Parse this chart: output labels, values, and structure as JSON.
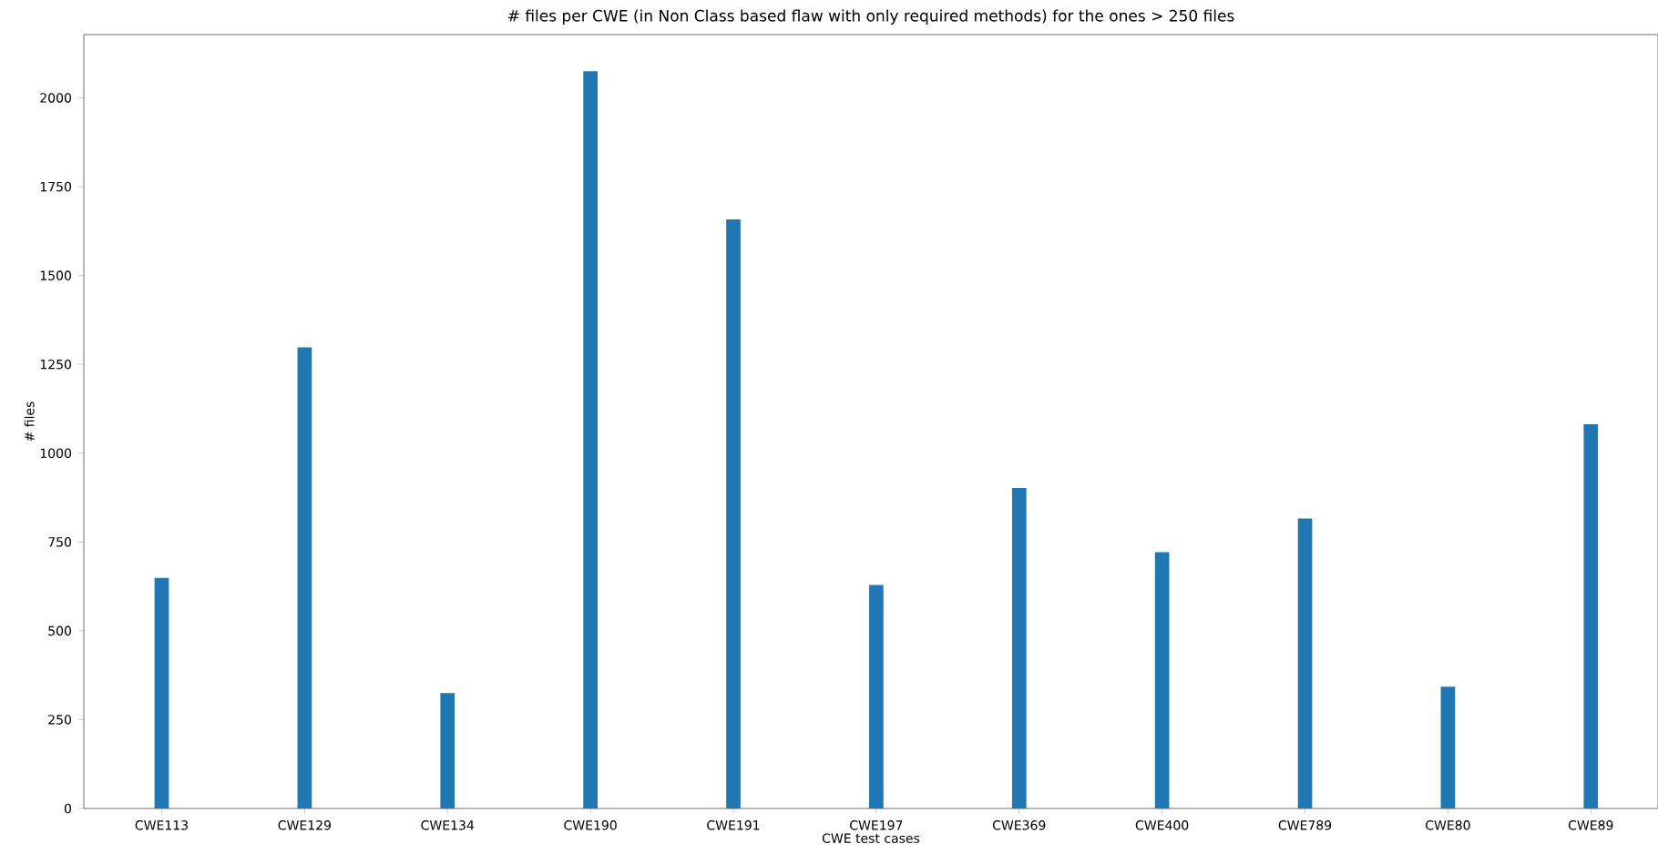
{
  "chart_data": {
    "type": "bar",
    "title": "# files per CWE (in Non Class based flaw with only required methods) for the ones > 250 files",
    "xlabel": "CWE test cases",
    "ylabel": "# files",
    "categories": [
      "CWE113",
      "CWE129",
      "CWE134",
      "CWE190",
      "CWE191",
      "CWE197",
      "CWE369",
      "CWE400",
      "CWE789",
      "CWE80",
      "CWE89"
    ],
    "values": [
      649,
      1298,
      325,
      2075,
      1658,
      629,
      902,
      721,
      816,
      343,
      1081
    ],
    "color": "#1f77b4",
    "ylim": [
      0,
      2178
    ],
    "yticks": [
      0,
      250,
      500,
      750,
      1000,
      1250,
      1500,
      1750,
      2000
    ]
  }
}
